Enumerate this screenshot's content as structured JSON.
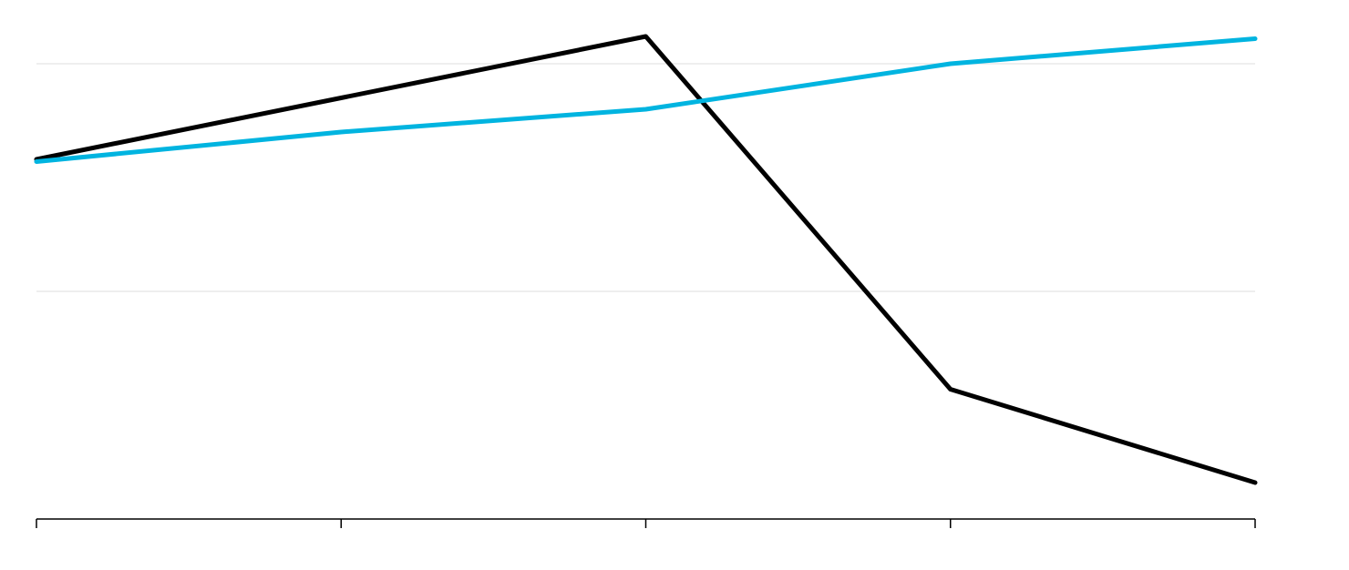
{
  "chart_data": {
    "type": "line",
    "categories": [
      null,
      null,
      null,
      null,
      null
    ],
    "series": [
      {
        "color": "#000000",
        "values": [
          1.58,
          1.85,
          2.12,
          0.57,
          0.16
        ]
      },
      {
        "color": "#00b4e0",
        "values": [
          1.57,
          1.7,
          1.8,
          2.0,
          2.11
        ]
      }
    ],
    "ylim": [
      0,
      2.28
    ],
    "yticks": [
      1,
      2
    ],
    "grid": true
  }
}
